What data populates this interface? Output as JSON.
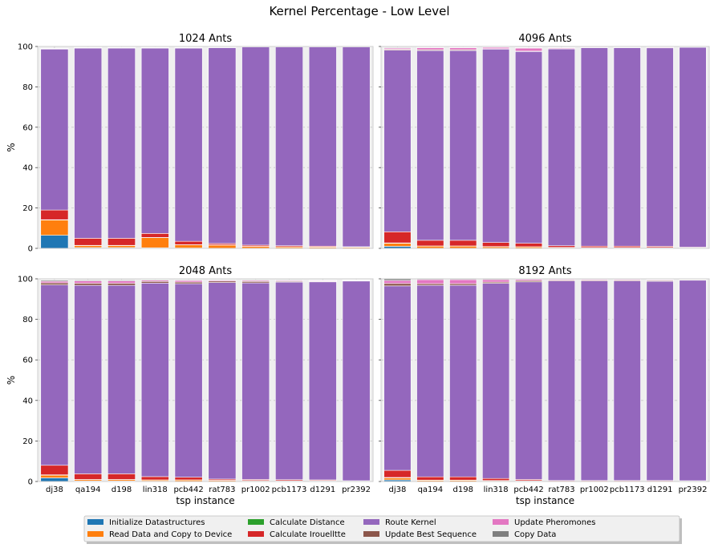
{
  "colors": {
    "Initialize Datastructures": "#1f77b4",
    "Read Data and Copy to Device": "#ff7f0e",
    "Calculate Distance": "#2ca02c",
    "Calculate Irouelltte": "#d62728",
    "Route Kernel": "#9467bd",
    "Update Best Sequence": "#8c564b",
    "Update Pheromones": "#e377c2",
    "Copy Data": "#7f7f7f"
  },
  "chart_data": {
    "type": "bar",
    "stacked": true,
    "title": "Kernel Percentage - Low Level",
    "xlabel": "tsp instance",
    "ylabel": "%",
    "ylim": [
      0,
      100
    ],
    "yticks": [
      0,
      20,
      40,
      60,
      80,
      100
    ],
    "grid": true,
    "categories": [
      "dj38",
      "qa194",
      "d198",
      "lin318",
      "pcb442",
      "rat783",
      "pr1002",
      "pcb1173",
      "d1291",
      "pr2392"
    ],
    "legend": {
      "placement": "bottom-center",
      "entries": [
        "Initialize Datastructures",
        "Read Data and Copy to Device",
        "Calculate Distance",
        "Calculate Irouelltte",
        "Route Kernel",
        "Update Best Sequence",
        "Update Pheromones",
        "Copy Data"
      ]
    },
    "panels": [
      {
        "title": "1024 Ants",
        "series": [
          {
            "name": "Initialize Datastructures",
            "values": [
              6.5,
              0.4,
              0.4,
              0.3,
              0.2,
              0.1,
              0.1,
              0.1,
              0.1,
              0.1
            ]
          },
          {
            "name": "Read Data and Copy to Device",
            "values": [
              7.5,
              1.0,
              1.0,
              5.0,
              1.5,
              1.5,
              0.8,
              0.6,
              0.5,
              0.4
            ]
          },
          {
            "name": "Calculate Distance",
            "values": [
              0.2,
              0.1,
              0.1,
              0.1,
              0.1,
              0.1,
              0.1,
              0.1,
              0.1,
              0.1
            ]
          },
          {
            "name": "Calculate Irouelltte",
            "values": [
              4.8,
              3.5,
              3.5,
              2.0,
              1.7,
              0.7,
              0.6,
              0.5,
              0.4,
              0.2
            ]
          },
          {
            "name": "Route Kernel",
            "values": [
              79.7,
              94.2,
              94.2,
              91.8,
              95.7,
              97.0,
              98.2,
              98.5,
              98.7,
              99.0
            ]
          },
          {
            "name": "Update Best Sequence",
            "values": [
              0.1,
              0.1,
              0.1,
              0.1,
              0.1,
              0.1,
              0.1,
              0.1,
              0.1,
              0.1
            ]
          },
          {
            "name": "Update Pheromones",
            "values": [
              0.2,
              0.2,
              0.2,
              0.2,
              0.2,
              0.1,
              0.1,
              0.1,
              0.1,
              0.1
            ]
          },
          {
            "name": "Copy Data",
            "values": [
              0.1,
              0.1,
              0.1,
              0.1,
              0.1,
              0.1,
              0.1,
              0.1,
              0.1,
              0.1
            ]
          }
        ]
      },
      {
        "title": "4096 Ants",
        "series": [
          {
            "name": "Initialize Datastructures",
            "values": [
              1.0,
              0.1,
              0.1,
              0.1,
              0.1,
              0.0,
              0.0,
              0.0,
              0.0,
              0.0
            ]
          },
          {
            "name": "Read Data and Copy to Device",
            "values": [
              1.5,
              1.0,
              1.0,
              0.7,
              0.6,
              0.4,
              0.3,
              0.3,
              0.3,
              0.2
            ]
          },
          {
            "name": "Calculate Distance",
            "values": [
              0.2,
              0.1,
              0.1,
              0.1,
              0.1,
              0.1,
              0.1,
              0.1,
              0.1,
              0.1
            ]
          },
          {
            "name": "Calculate Irouelltte",
            "values": [
              5.5,
              2.8,
              2.8,
              2.0,
              1.7,
              0.8,
              0.7,
              0.7,
              0.6,
              0.3
            ]
          },
          {
            "name": "Route Kernel",
            "values": [
              90.0,
              94.0,
              94.0,
              95.8,
              95.0,
              97.5,
              98.3,
              98.3,
              98.3,
              99.0
            ]
          },
          {
            "name": "Update Best Sequence",
            "values": [
              0.4,
              0.4,
              0.4,
              0.2,
              0.2,
              0.1,
              0.1,
              0.1,
              0.1,
              0.1
            ]
          },
          {
            "name": "Update Pheromones",
            "values": [
              0.6,
              1.0,
              1.0,
              0.7,
              1.5,
              0.4,
              0.3,
              0.2,
              0.3,
              0.2
            ]
          },
          {
            "name": "Copy Data",
            "values": [
              0.3,
              0.2,
              0.2,
              0.2,
              0.2,
              0.1,
              0.1,
              0.1,
              0.1,
              0.1
            ]
          }
        ]
      },
      {
        "title": "2048 Ants",
        "series": [
          {
            "name": "Initialize Datastructures",
            "values": [
              1.8,
              0.3,
              0.3,
              0.2,
              0.1,
              0.1,
              0.1,
              0.1,
              0.1,
              0.0
            ]
          },
          {
            "name": "Read Data and Copy to Device",
            "values": [
              1.3,
              0.6,
              0.6,
              0.5,
              0.6,
              0.4,
              0.3,
              0.2,
              0.2,
              0.1
            ]
          },
          {
            "name": "Calculate Distance",
            "values": [
              0.2,
              0.1,
              0.1,
              0.1,
              0.1,
              0.1,
              0.1,
              0.1,
              0.1,
              0.1
            ]
          },
          {
            "name": "Calculate Irouelltte",
            "values": [
              4.7,
              2.8,
              2.8,
              1.6,
              1.3,
              0.6,
              0.5,
              0.5,
              0.4,
              0.2
            ]
          },
          {
            "name": "Route Kernel",
            "values": [
              89.0,
              93.0,
              93.0,
              95.5,
              95.5,
              97.0,
              97.0,
              97.5,
              97.7,
              98.5
            ]
          },
          {
            "name": "Update Best Sequence",
            "values": [
              1.0,
              1.0,
              1.0,
              0.8,
              0.8,
              0.7,
              0.7,
              0.4,
              0.3,
              0.2
            ]
          },
          {
            "name": "Update Pheromones",
            "values": [
              0.8,
              1.2,
              1.2,
              0.6,
              0.8,
              0.4,
              0.5,
              0.4,
              0.3,
              0.2
            ]
          },
          {
            "name": "Copy Data",
            "values": [
              0.5,
              0.4,
              0.4,
              0.3,
              0.3,
              0.3,
              0.3,
              0.3,
              0.2,
              0.2
            ]
          }
        ]
      },
      {
        "title": "8192 Ants",
        "series": [
          {
            "name": "Initialize Datastructures",
            "values": [
              0.8,
              0.1,
              0.1,
              0.1,
              0.1,
              0.0,
              0.0,
              0.0,
              0.0,
              0.0
            ]
          },
          {
            "name": "Read Data and Copy to Device",
            "values": [
              1.0,
              0.5,
              0.5,
              0.3,
              0.2,
              0.1,
              0.1,
              0.1,
              0.1,
              0.1
            ]
          },
          {
            "name": "Calculate Distance",
            "values": [
              0.2,
              0.1,
              0.1,
              0.1,
              0.1,
              0.1,
              0.1,
              0.1,
              0.1,
              0.1
            ]
          },
          {
            "name": "Calculate Irouelltte",
            "values": [
              3.5,
              1.6,
              1.6,
              1.0,
              0.6,
              0.3,
              0.3,
              0.3,
              0.3,
              0.2
            ]
          },
          {
            "name": "Route Kernel",
            "values": [
              91.0,
              94.5,
              94.5,
              96.3,
              97.5,
              98.5,
              98.5,
              98.5,
              98.3,
              98.9
            ]
          },
          {
            "name": "Update Best Sequence",
            "values": [
              1.2,
              0.8,
              0.8,
              0.6,
              0.6,
              0.4,
              0.4,
              0.4,
              0.4,
              0.3
            ]
          },
          {
            "name": "Update Pheromones",
            "values": [
              1.5,
              2.0,
              2.0,
              1.2,
              0.6,
              0.4,
              0.4,
              0.4,
              0.3,
              0.2
            ]
          },
          {
            "name": "Copy Data",
            "values": [
              0.8,
              0.4,
              0.4,
              0.4,
              0.4,
              0.2,
              0.2,
              0.2,
              0.2,
              0.2
            ]
          }
        ]
      }
    ]
  }
}
